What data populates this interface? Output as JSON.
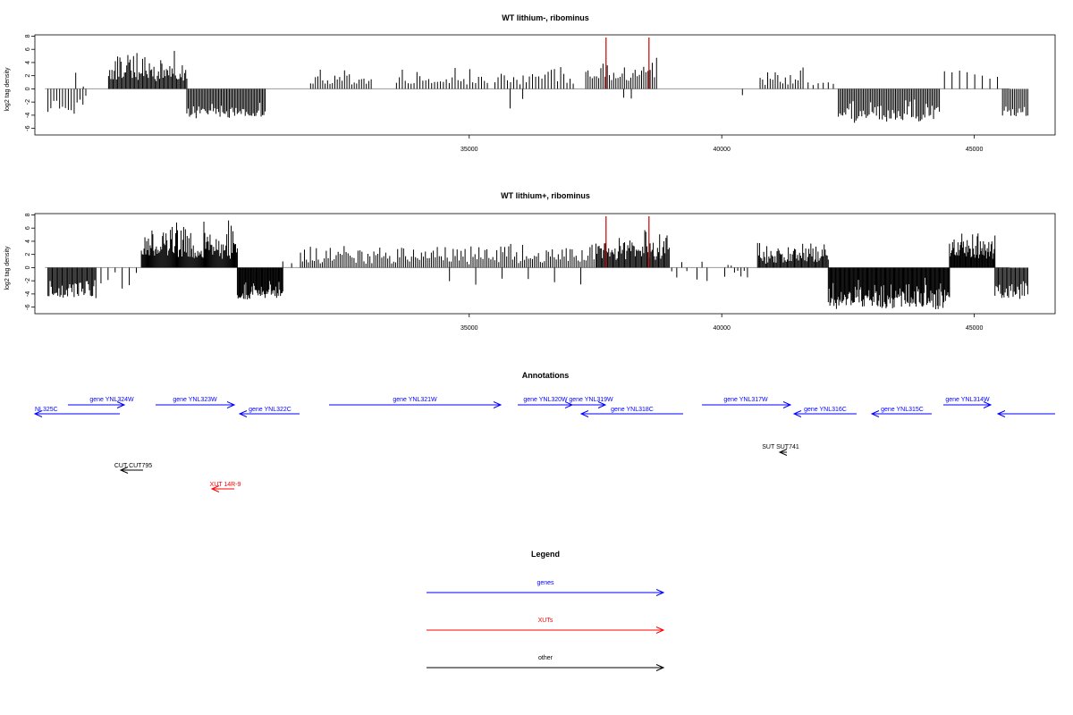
{
  "chart_data": [
    {
      "type": "bar",
      "title": "WT lithium-, ribominus",
      "ylabel": "log2 tag density",
      "xlabel": "",
      "xlim": [
        26400,
        46600
      ],
      "ylim": [
        -7,
        8.2
      ],
      "xticks": [
        35000,
        40000,
        45000
      ],
      "yticks": [
        -6,
        -4,
        -2,
        0,
        2,
        4,
        6,
        8
      ],
      "baseline": {
        "x": [
          26600,
          45700
        ],
        "color": "#999999"
      },
      "marker_lines": {
        "x": [
          37700,
          38550
        ],
        "top": 7.8,
        "color": "#cc0000"
      },
      "segments": [
        {
          "x0": 26650,
          "x1": 27400,
          "min": -4,
          "max": 0,
          "n": 14,
          "phase": 1
        },
        {
          "x0": 27200,
          "x1": 27350,
          "min": 0,
          "max": 3,
          "n": 2,
          "phase": 2
        },
        {
          "x0": 27850,
          "x1": 29400,
          "min": 1,
          "max": 6,
          "n": 70,
          "phase": 3
        },
        {
          "x0": 29400,
          "x1": 30950,
          "min": -4.5,
          "max": -1.5,
          "n": 60,
          "phase": 4
        },
        {
          "x0": 31850,
          "x1": 33050,
          "min": 0.5,
          "max": 3.8,
          "n": 26,
          "phase": 5
        },
        {
          "x0": 33550,
          "x1": 35350,
          "min": 0.5,
          "max": 3.5,
          "n": 32,
          "phase": 6
        },
        {
          "x0": 35500,
          "x1": 37050,
          "min": 0.5,
          "max": 3.8,
          "n": 26,
          "phase": 7
        },
        {
          "x0": 35800,
          "x1": 36050,
          "min": -3,
          "max": -1,
          "n": 2,
          "phase": 8
        },
        {
          "x0": 37300,
          "x1": 38700,
          "min": 1,
          "max": 5.2,
          "n": 34,
          "phase": 9
        },
        {
          "x0": 38050,
          "x1": 38200,
          "min": -1.5,
          "max": -0.5,
          "n": 2,
          "phase": 10
        },
        {
          "x0": 40350,
          "x1": 40450,
          "min": -1,
          "max": -0.5,
          "n": 1,
          "phase": 11
        },
        {
          "x0": 40750,
          "x1": 41600,
          "min": 0.5,
          "max": 4,
          "n": 18,
          "phase": 12
        },
        {
          "x0": 41700,
          "x1": 42200,
          "min": 0.5,
          "max": 1.8,
          "n": 6,
          "phase": 13
        },
        {
          "x0": 42300,
          "x1": 44300,
          "min": -5.2,
          "max": -1,
          "n": 70,
          "phase": 14
        },
        {
          "x0": 44400,
          "x1": 45450,
          "min": 1.5,
          "max": 3.8,
          "n": 8,
          "phase": 15
        },
        {
          "x0": 45550,
          "x1": 46050,
          "min": -4.8,
          "max": -1.5,
          "n": 16,
          "phase": 16
        }
      ]
    },
    {
      "type": "bar",
      "title": "WT lithium+, ribominus",
      "ylabel": "log2 tag density",
      "xlabel": "",
      "xlim": [
        26400,
        46600
      ],
      "ylim": [
        -7,
        8.2
      ],
      "xticks": [
        35000,
        40000,
        45000
      ],
      "yticks": [
        -6,
        -4,
        -2,
        0,
        2,
        4,
        6,
        8
      ],
      "baseline": {
        "x": [
          26600,
          45700
        ],
        "color": "#999999"
      },
      "marker_lines": {
        "x": [
          37700,
          38550
        ],
        "top": 7.8,
        "color": "#cc0000"
      },
      "segments": [
        {
          "x0": 26650,
          "x1": 27600,
          "min": -4.8,
          "max": -1,
          "n": 45,
          "phase": 21
        },
        {
          "x0": 27700,
          "x1": 28400,
          "min": -3.5,
          "max": 2.5,
          "n": 6,
          "phase": 22
        },
        {
          "x0": 28500,
          "x1": 30400,
          "min": 1,
          "max": 7.5,
          "n": 110,
          "phase": 23
        },
        {
          "x0": 30400,
          "x1": 31300,
          "min": -5,
          "max": -1.5,
          "n": 60,
          "phase": 24
        },
        {
          "x0": 31300,
          "x1": 31650,
          "min": 0.5,
          "max": 1.5,
          "n": 3,
          "phase": 25
        },
        {
          "x0": 31650,
          "x1": 37500,
          "min": 0.5,
          "max": 4.2,
          "n": 150,
          "phase": 26
        },
        {
          "x0": 34600,
          "x1": 37200,
          "min": -3,
          "max": -0.5,
          "n": 6,
          "phase": 27
        },
        {
          "x0": 37500,
          "x1": 38950,
          "min": 1,
          "max": 6.5,
          "n": 70,
          "phase": 28
        },
        {
          "x0": 39000,
          "x1": 39700,
          "min": -2.5,
          "max": 1.5,
          "n": 8,
          "phase": 29
        },
        {
          "x0": 40050,
          "x1": 40500,
          "min": -2.5,
          "max": 1,
          "n": 8,
          "phase": 30
        },
        {
          "x0": 40700,
          "x1": 42100,
          "min": 0.5,
          "max": 4.5,
          "n": 70,
          "phase": 31
        },
        {
          "x0": 42100,
          "x1": 44500,
          "min": -6.5,
          "max": -1,
          "n": 150,
          "phase": 32
        },
        {
          "x0": 44500,
          "x1": 45400,
          "min": 1,
          "max": 6.5,
          "n": 60,
          "phase": 33
        },
        {
          "x0": 45400,
          "x1": 46050,
          "min": -4.8,
          "max": -1,
          "n": 30,
          "phase": 34
        }
      ]
    }
  ],
  "annotations": {
    "title": "Annotations",
    "items": [
      {
        "label": "NL325C",
        "kind": "gene",
        "dir": "left"
      },
      {
        "label": "gene YNL324W",
        "kind": "gene",
        "dir": "right"
      },
      {
        "label": "gene YNL323W",
        "kind": "gene",
        "dir": "right"
      },
      {
        "label": "gene YNL322C",
        "kind": "gene",
        "dir": "left"
      },
      {
        "label": "gene YNL321W",
        "kind": "gene",
        "dir": "right"
      },
      {
        "label": "gene YNL320W",
        "kind": "gene",
        "dir": "right"
      },
      {
        "label": "gene YNL319W",
        "kind": "gene",
        "dir": "right"
      },
      {
        "label": "gene YNL318C",
        "kind": "gene",
        "dir": "left"
      },
      {
        "label": "gene YNL317W",
        "kind": "gene",
        "dir": "right"
      },
      {
        "label": "gene YNL316C",
        "kind": "gene",
        "dir": "left"
      },
      {
        "label": "gene YNL315C",
        "kind": "gene",
        "dir": "left"
      },
      {
        "label": "gene YNL314W",
        "kind": "gene",
        "dir": "right"
      },
      {
        "label": "",
        "kind": "gene",
        "dir": "left"
      },
      {
        "label": "SUT SUT741",
        "kind": "other",
        "dir": "left"
      },
      {
        "label": "CUT CUT795",
        "kind": "other",
        "dir": "left"
      },
      {
        "label": "XUT 14R-9",
        "kind": "xut",
        "dir": "left"
      }
    ]
  },
  "legend": {
    "title": "Legend",
    "items": [
      {
        "label": "genes",
        "color": "#0000ff"
      },
      {
        "label": "XUTs",
        "color": "#ff0000"
      },
      {
        "label": "other",
        "color": "#000000"
      }
    ]
  },
  "colors": {
    "gene": "#0000ff",
    "xut": "#ff0000",
    "other": "#000000"
  }
}
